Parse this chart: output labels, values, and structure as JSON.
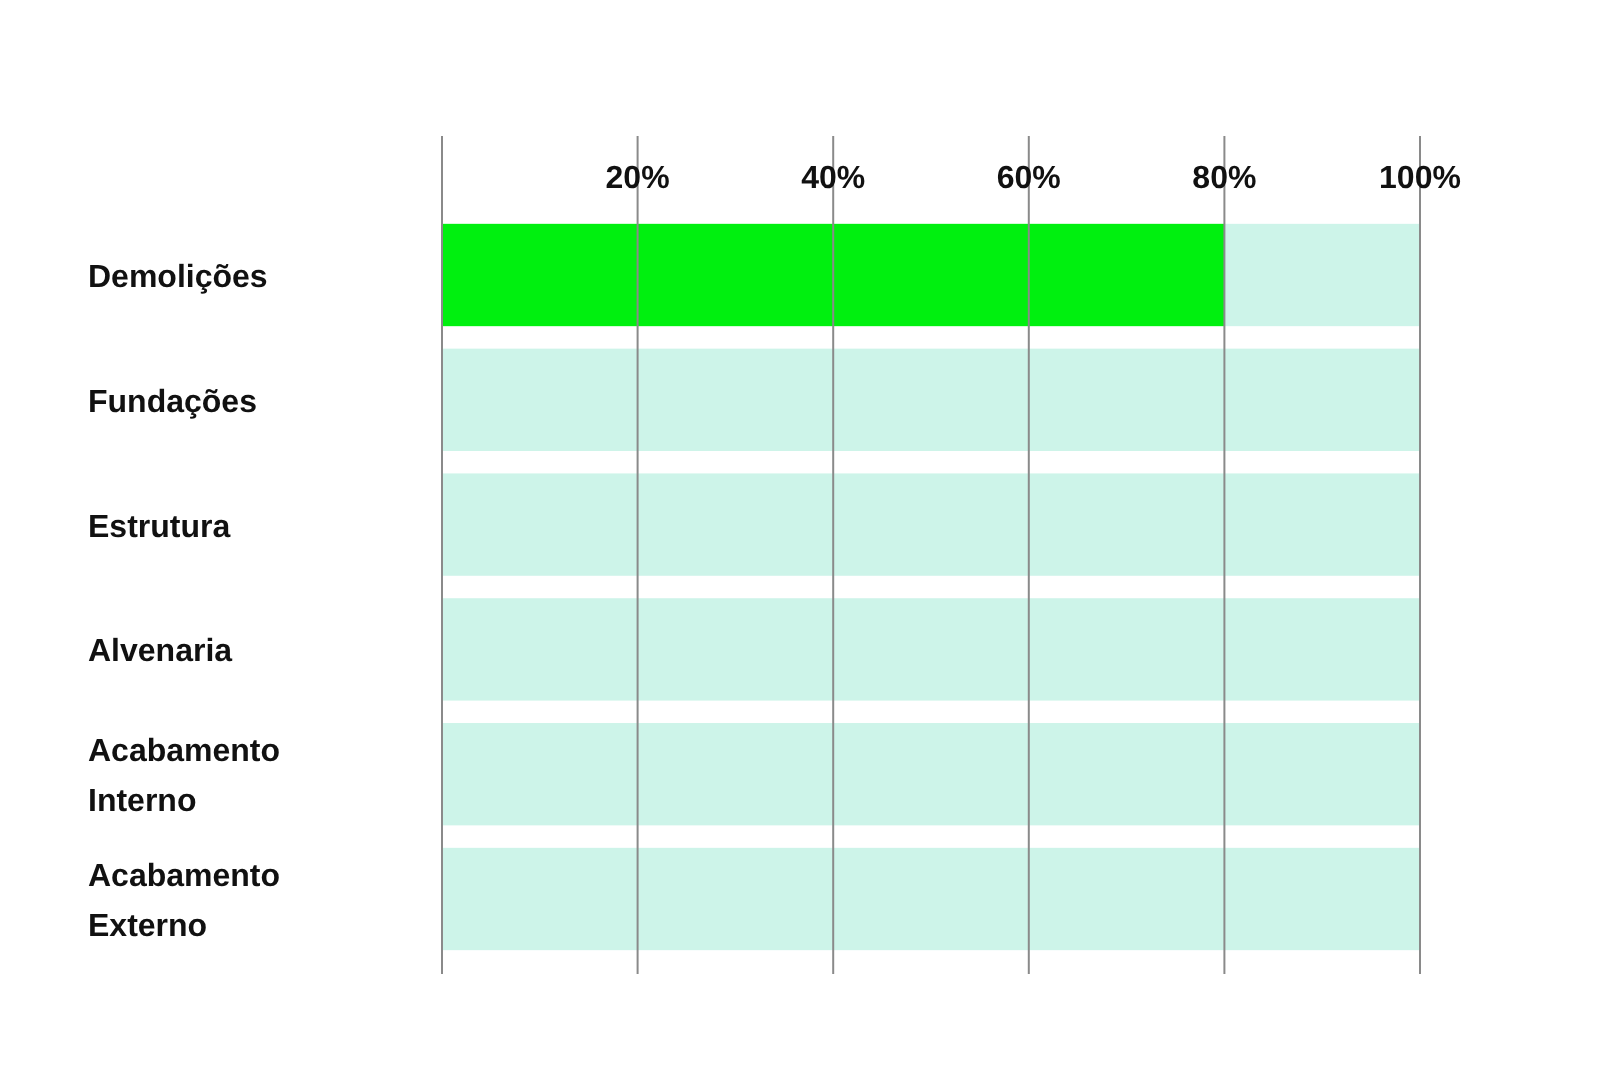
{
  "chart_data": {
    "type": "bar",
    "orientation": "horizontal",
    "stacked": true,
    "categories": [
      "Demolições",
      "Fundações",
      "Estrutura",
      "Alvenaria",
      "Acabamento Interno",
      "Acabamento Externo"
    ],
    "series": [
      {
        "color": "#00f00f",
        "values": [
          80,
          0,
          0,
          0,
          0,
          0
        ]
      },
      {
        "color": "#cdf4e9",
        "values": [
          20,
          100,
          100,
          100,
          100,
          100
        ]
      }
    ],
    "xlim": [
      0,
      100
    ],
    "xticks": [
      {
        "value": 20,
        "label": "20%"
      },
      {
        "value": 40,
        "label": "40%"
      },
      {
        "value": 60,
        "label": "60%"
      },
      {
        "value": 80,
        "label": "80%"
      },
      {
        "value": 100,
        "label": "100%"
      }
    ],
    "grid": "x"
  }
}
